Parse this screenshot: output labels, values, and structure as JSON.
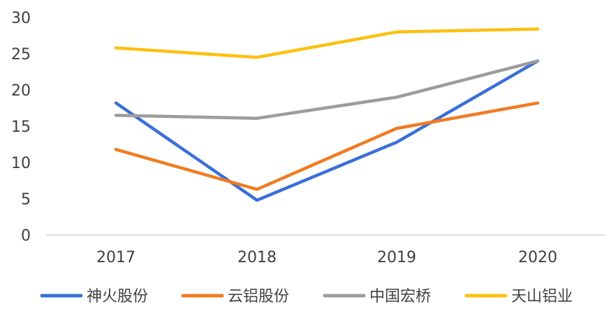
{
  "chart_data": {
    "type": "line",
    "title": "",
    "xlabel": "",
    "ylabel": "",
    "categories": [
      "2017",
      "2018",
      "2019",
      "2020"
    ],
    "ylim": [
      0,
      30
    ],
    "yticks": [
      0,
      5,
      10,
      15,
      20,
      25,
      30
    ],
    "grid": false,
    "legend_position": "bottom",
    "series": [
      {
        "name": "神火股份",
        "color": "#3A6FD8",
        "values": [
          18.2,
          4.8,
          12.8,
          24.0
        ]
      },
      {
        "name": "云铝股份",
        "color": "#F07C23",
        "values": [
          11.8,
          6.3,
          14.7,
          18.2
        ]
      },
      {
        "name": "中国宏桥",
        "color": "#9C9C9C",
        "values": [
          16.5,
          16.1,
          19.0,
          24.0
        ]
      },
      {
        "name": "天山铝业",
        "color": "#FDC011",
        "values": [
          25.8,
          24.5,
          28.0,
          28.4
        ]
      }
    ]
  }
}
